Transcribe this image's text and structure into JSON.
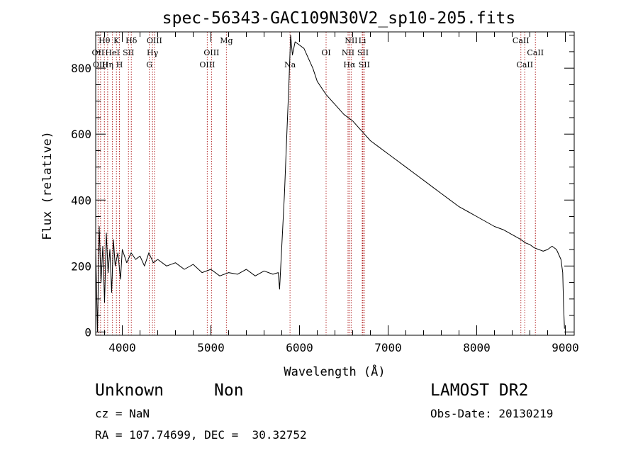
{
  "chart_data": {
    "type": "line",
    "title": "spec-56343-GAC109N30V2_sp10-205.fits",
    "xlabel": "Wavelength (Å)",
    "ylabel": "Flux (relative)",
    "xlim": [
      3700,
      9100
    ],
    "ylim": [
      -10,
      910
    ],
    "x_ticks": [
      4000,
      5000,
      6000,
      7000,
      8000,
      9000
    ],
    "x_tick_labels": [
      "4000",
      "5000",
      "6000",
      "7000",
      "8000",
      "9000"
    ],
    "y_ticks": [
      0,
      200,
      400,
      600,
      800
    ],
    "y_tick_labels": [
      "0",
      "200",
      "400",
      "600",
      "800"
    ],
    "grid": false,
    "series": [
      {
        "color": "#000000",
        "x": [
          3700,
          3720,
          3740,
          3760,
          3780,
          3800,
          3820,
          3840,
          3860,
          3880,
          3900,
          3920,
          3950,
          3980,
          4000,
          4050,
          4100,
          4150,
          4200,
          4250,
          4300,
          4350,
          4400,
          4500,
          4600,
          4700,
          4800,
          4900,
          5000,
          5100,
          5200,
          5300,
          5400,
          5500,
          5600,
          5700,
          5760,
          5775,
          5800,
          5830,
          5860,
          5880,
          5900,
          5920,
          5950,
          6000,
          6050,
          6100,
          6150,
          6200,
          6300,
          6400,
          6500,
          6600,
          6700,
          6800,
          6900,
          7000,
          7100,
          7200,
          7300,
          7400,
          7500,
          7600,
          7700,
          7800,
          7900,
          8000,
          8100,
          8200,
          8300,
          8400,
          8500,
          8550,
          8600,
          8650,
          8700,
          8750,
          8800,
          8850,
          8900,
          8950,
          8970,
          8980,
          8990
        ],
        "y": [
          250,
          0,
          320,
          150,
          260,
          90,
          300,
          180,
          250,
          120,
          280,
          200,
          240,
          160,
          250,
          210,
          240,
          220,
          230,
          200,
          240,
          210,
          220,
          200,
          210,
          190,
          205,
          180,
          190,
          170,
          180,
          175,
          190,
          170,
          185,
          175,
          180,
          130,
          260,
          420,
          620,
          750,
          900,
          840,
          880,
          870,
          860,
          830,
          800,
          760,
          720,
          690,
          660,
          640,
          610,
          580,
          560,
          540,
          520,
          500,
          480,
          460,
          440,
          420,
          400,
          380,
          365,
          350,
          335,
          320,
          310,
          295,
          280,
          270,
          265,
          255,
          250,
          245,
          250,
          260,
          250,
          220,
          180,
          80,
          10
        ]
      }
    ],
    "line_markers": [
      {
        "label": "Hθ",
        "x": 3798,
        "row": 1
      },
      {
        "label": "OII",
        "x": 3727,
        "row": 2
      },
      {
        "label": "OIII",
        "x": 3755,
        "row": 3
      },
      {
        "label": "K",
        "x": 3934,
        "row": 1
      },
      {
        "label": "HeI",
        "x": 3889,
        "row": 2
      },
      {
        "label": "Hη",
        "x": 3835,
        "row": 3
      },
      {
        "label": "Hδ",
        "x": 4102,
        "row": 1
      },
      {
        "label": "SII",
        "x": 4070,
        "row": 2
      },
      {
        "label": "H",
        "x": 3968,
        "row": 3
      },
      {
        "label": "OIII",
        "x": 4363,
        "row": 1
      },
      {
        "label": "Hγ",
        "x": 4341,
        "row": 2
      },
      {
        "label": "G",
        "x": 4305,
        "row": 3
      },
      {
        "label": "Mg",
        "x": 5175,
        "row": 1
      },
      {
        "label": "OIII",
        "x": 5007,
        "row": 2
      },
      {
        "label": "OIII",
        "x": 4959,
        "row": 3
      },
      {
        "label": "Na",
        "x": 5893,
        "row": 3
      },
      {
        "label": "OI",
        "x": 6300,
        "row": 2
      },
      {
        "label": "NII",
        "x": 6583,
        "row": 1
      },
      {
        "label": "Li",
        "x": 6708,
        "row": 1
      },
      {
        "label": "NII",
        "x": 6548,
        "row": 2
      },
      {
        "label": "SII",
        "x": 6716,
        "row": 2
      },
      {
        "label": "Hα",
        "x": 6563,
        "row": 3
      },
      {
        "label": "SII",
        "x": 6731,
        "row": 3
      },
      {
        "label": "CaII",
        "x": 8498,
        "row": 1
      },
      {
        "label": "CaII",
        "x": 8662,
        "row": 2
      },
      {
        "label": "CaII",
        "x": 8542,
        "row": 3
      }
    ],
    "marker_color": "#b02020"
  },
  "info": {
    "object_class": "Unknown",
    "subclass": "Non",
    "survey": "LAMOST DR2",
    "cz": "cz = NaN",
    "obs_date": "Obs-Date: 20130219",
    "coords": "RA = 107.74699, DEC =  30.32752"
  }
}
